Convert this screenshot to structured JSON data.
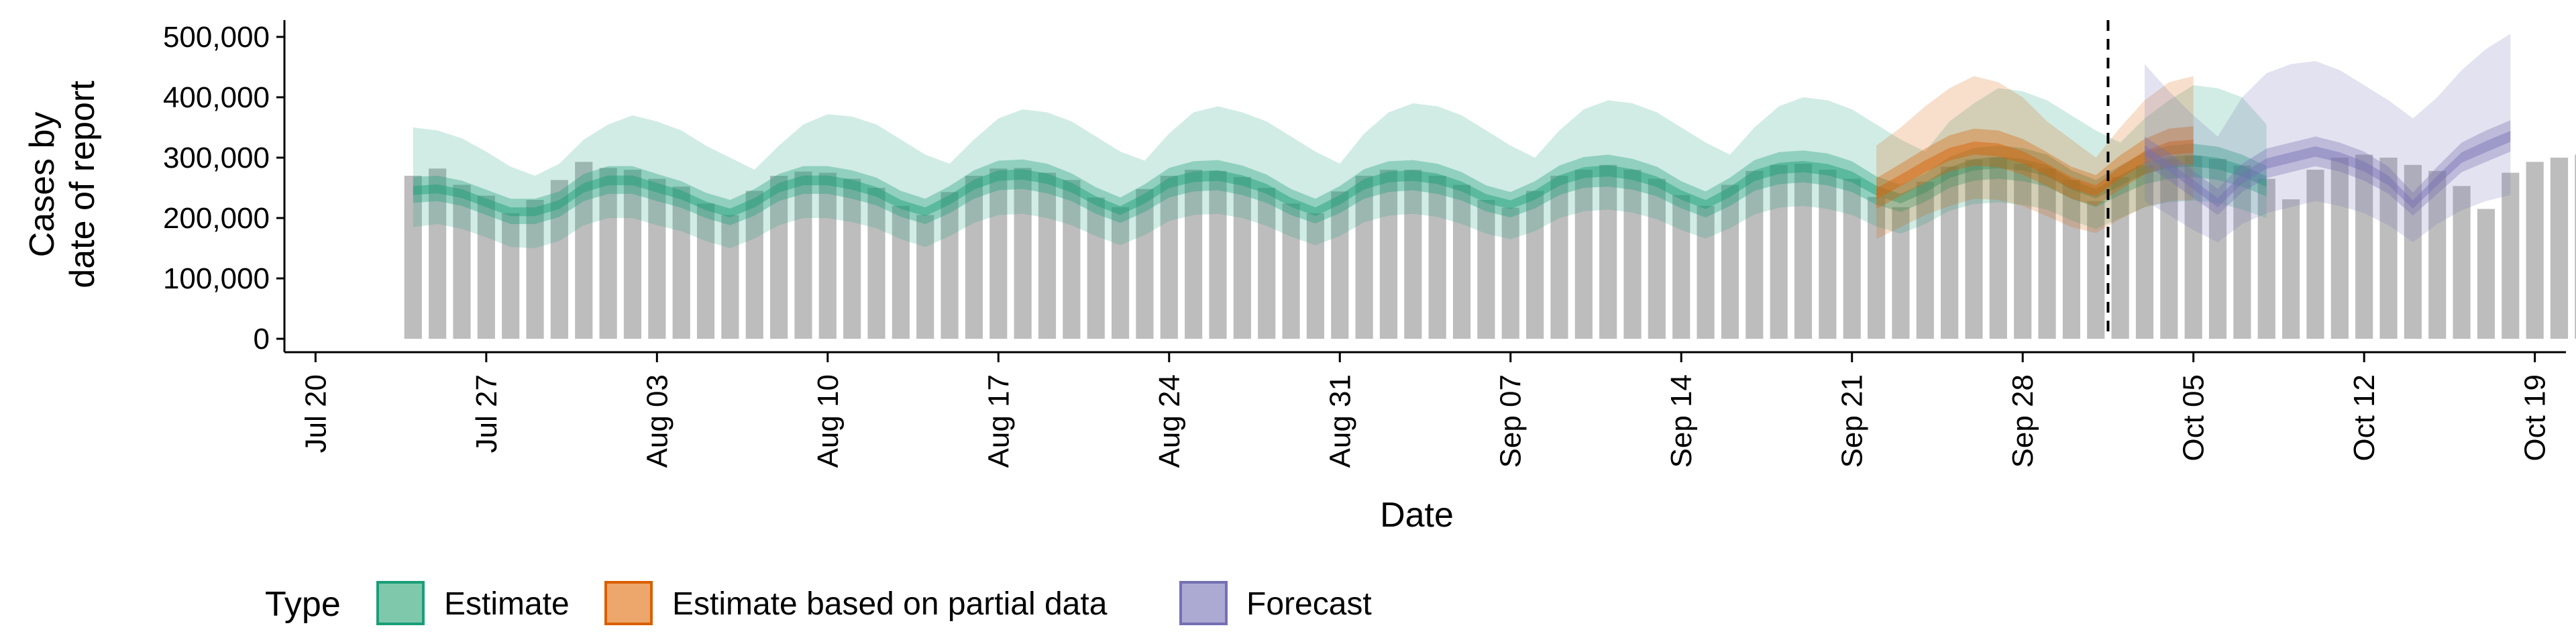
{
  "chart_data": {
    "type": "area",
    "ylabel_lines": [
      "Cases by",
      "date of report"
    ],
    "xlabel": "Date",
    "y_ticks": [
      0,
      100000,
      200000,
      300000,
      400000,
      500000
    ],
    "y_tick_labels": [
      "0",
      "100,000",
      "200,000",
      "300,000",
      "400,000",
      "500,000"
    ],
    "ylim": [
      0,
      520000
    ],
    "x_start": "2020-07-19",
    "x_end": "2020-10-20",
    "x_ticks": [
      {
        "date": "2020-07-20",
        "label": "Jul 20"
      },
      {
        "date": "2020-07-27",
        "label": "Jul 27"
      },
      {
        "date": "2020-08-03",
        "label": "Aug 03"
      },
      {
        "date": "2020-08-10",
        "label": "Aug 10"
      },
      {
        "date": "2020-08-17",
        "label": "Aug 17"
      },
      {
        "date": "2020-08-24",
        "label": "Aug 24"
      },
      {
        "date": "2020-08-31",
        "label": "Aug 31"
      },
      {
        "date": "2020-09-07",
        "label": "Sep 07"
      },
      {
        "date": "2020-09-14",
        "label": "Sep 14"
      },
      {
        "date": "2020-09-21",
        "label": "Sep 21"
      },
      {
        "date": "2020-09-28",
        "label": "Sep 28"
      },
      {
        "date": "2020-10-05",
        "label": "Oct 05"
      },
      {
        "date": "2020-10-12",
        "label": "Oct 12"
      },
      {
        "date": "2020-10-19",
        "label": "Oct 19"
      }
    ],
    "forecast_line_date": "2020-10-02",
    "legend": {
      "title": "Type",
      "position": "bottom",
      "items": [
        {
          "name": "Estimate",
          "fill": "#7fc8ab",
          "stroke": "#1b9e77"
        },
        {
          "name": "Estimate based on partial data",
          "fill": "#eda66b",
          "stroke": "#d95f02"
        },
        {
          "name": "Forecast",
          "fill": "#aca9d3",
          "stroke": "#7570b3"
        }
      ]
    },
    "series_colors": {
      "bars": "#bdbdbd",
      "Estimate": "#1b9e77",
      "Estimate based on partial data": "#d95f02",
      "Forecast": "#7570b3"
    },
    "reported_cases": {
      "start_date": "2020-07-24",
      "values": [
        270000,
        282000,
        255000,
        237000,
        208000,
        230000,
        263000,
        293000,
        283000,
        280000,
        265000,
        252000,
        224000,
        205000,
        245000,
        270000,
        277000,
        275000,
        265000,
        250000,
        220000,
        205000,
        243000,
        270000,
        282000,
        283000,
        275000,
        263000,
        234000,
        218000,
        248000,
        270000,
        280000,
        278000,
        268000,
        250000,
        224000,
        208000,
        244000,
        270000,
        280000,
        280000,
        270000,
        255000,
        230000,
        217000,
        245000,
        270000,
        280000,
        288000,
        280000,
        265000,
        238000,
        220000,
        255000,
        278000,
        288000,
        290000,
        280000,
        265000,
        235000,
        218000,
        260000,
        285000,
        297000,
        300000,
        290000,
        282000,
        263000,
        228000,
        268000,
        287000,
        297000,
        303000,
        298000,
        287000,
        265000,
        231000,
        280000,
        300000,
        305000,
        300000,
        288000,
        278000,
        253000,
        215000,
        275000,
        293000,
        300000,
        305000
      ]
    },
    "estimate": {
      "start_date": "2020-07-24",
      "median": [
        245000,
        248000,
        240000,
        225000,
        210000,
        210000,
        222000,
        250000,
        262000,
        262000,
        250000,
        238000,
        220000,
        208000,
        225000,
        250000,
        262000,
        262000,
        255000,
        243000,
        222000,
        210000,
        230000,
        255000,
        270000,
        272000,
        265000,
        250000,
        228000,
        212000,
        232000,
        258000,
        268000,
        270000,
        262000,
        248000,
        226000,
        210000,
        230000,
        256000,
        268000,
        270000,
        265000,
        252000,
        232000,
        222000,
        238000,
        262000,
        275000,
        278000,
        272000,
        260000,
        238000,
        222000,
        243000,
        270000,
        282000,
        285000,
        280000,
        268000,
        245000,
        232000,
        250000,
        275000,
        288000,
        292000,
        288000,
        278000,
        255000,
        240000,
        262000,
        282000,
        292000,
        295000,
        290000,
        278000,
        260000
      ],
      "low50": [
        225000,
        228000,
        220000,
        205000,
        190000,
        190000,
        202000,
        228000,
        240000,
        240000,
        228000,
        217000,
        200000,
        188000,
        204000,
        228000,
        240000,
        240000,
        232000,
        221000,
        202000,
        190000,
        208000,
        232000,
        246000,
        248000,
        241000,
        228000,
        207000,
        192000,
        210000,
        234000,
        244000,
        246000,
        238000,
        225000,
        205000,
        191000,
        208000,
        232000,
        243000,
        246000,
        240000,
        229000,
        211000,
        201000,
        216000,
        238000,
        250000,
        252000,
        247000,
        236000,
        216000,
        201000,
        220000,
        245000,
        256000,
        259000,
        254000,
        243000,
        222000,
        210000,
        227000,
        250000,
        262000,
        265000,
        261000,
        252000,
        232000,
        218000,
        238000,
        256000,
        265000,
        268000,
        263000,
        252000,
        236000
      ],
      "high50": [
        268000,
        270000,
        262000,
        247000,
        232000,
        232000,
        244000,
        273000,
        286000,
        286000,
        273000,
        261000,
        242000,
        230000,
        248000,
        273000,
        286000,
        286000,
        279000,
        267000,
        245000,
        232000,
        253000,
        279000,
        295000,
        297000,
        290000,
        274000,
        251000,
        234000,
        256000,
        283000,
        294000,
        296000,
        287000,
        272000,
        248000,
        232000,
        253000,
        281000,
        294000,
        296000,
        290000,
        276000,
        254000,
        243000,
        261000,
        287000,
        301000,
        305000,
        298000,
        285000,
        261000,
        244000,
        267000,
        296000,
        309000,
        312000,
        307000,
        294000,
        269000,
        255000,
        274000,
        301000,
        316000,
        320000,
        316000,
        305000,
        279000,
        263000,
        287000,
        309000,
        320000,
        323000,
        318000,
        305000,
        286000
      ],
      "low90": [
        185000,
        190000,
        182000,
        168000,
        152000,
        150000,
        162000,
        188000,
        200000,
        200000,
        188000,
        178000,
        162000,
        150000,
        166000,
        188000,
        200000,
        200000,
        193000,
        183000,
        165000,
        152000,
        170000,
        192000,
        205000,
        207000,
        200000,
        188000,
        170000,
        155000,
        172000,
        195000,
        205000,
        207000,
        200000,
        187000,
        169000,
        155000,
        170000,
        193000,
        204000,
        207000,
        202000,
        190000,
        174000,
        165000,
        178000,
        200000,
        211000,
        214000,
        209000,
        198000,
        180000,
        166000,
        183000,
        206000,
        217000,
        220000,
        215000,
        205000,
        186000,
        174000,
        190000,
        212000,
        223000,
        226000,
        222000,
        214000,
        196000,
        182000,
        200000,
        218000,
        226000,
        229000,
        225000,
        214000,
        200000
      ],
      "high90": [
        350000,
        345000,
        332000,
        310000,
        285000,
        270000,
        290000,
        330000,
        355000,
        370000,
        360000,
        345000,
        320000,
        300000,
        280000,
        320000,
        355000,
        372000,
        368000,
        355000,
        330000,
        305000,
        290000,
        330000,
        365000,
        380000,
        375000,
        360000,
        335000,
        310000,
        295000,
        340000,
        375000,
        385000,
        375000,
        360000,
        335000,
        310000,
        290000,
        340000,
        375000,
        390000,
        385000,
        370000,
        345000,
        320000,
        300000,
        345000,
        380000,
        395000,
        390000,
        375000,
        350000,
        325000,
        305000,
        350000,
        385000,
        400000,
        395000,
        380000,
        355000,
        330000,
        310000,
        360000,
        390000,
        415000,
        410000,
        395000,
        370000,
        345000,
        325000,
        365000,
        395000,
        420000,
        415000,
        400000,
        355000
      ]
    },
    "partial": {
      "start_date": "2020-09-22",
      "median": [
        240000,
        262000,
        285000,
        305000,
        315000,
        312000,
        300000,
        280000,
        258000,
        245000,
        275000,
        300000,
        315000,
        318000
      ],
      "low50": [
        215000,
        237000,
        258000,
        277000,
        287000,
        284000,
        272000,
        253000,
        232000,
        220000,
        248000,
        272000,
        286000,
        289000
      ],
      "high50": [
        266000,
        290000,
        315000,
        337000,
        348000,
        345000,
        331000,
        309000,
        285000,
        271000,
        304000,
        331000,
        348000,
        352000
      ],
      "low90": [
        165000,
        185000,
        205000,
        220000,
        232000,
        230000,
        220000,
        203000,
        185000,
        175000,
        198000,
        218000,
        228000,
        230000
      ],
      "high90": [
        320000,
        350000,
        385000,
        415000,
        435000,
        425000,
        400000,
        360000,
        330000,
        300000,
        350000,
        395000,
        425000,
        435000
      ]
    },
    "forecast": {
      "start_date": "2020-10-03",
      "median": [
        312000,
        285000,
        255000,
        225000,
        265000,
        290000,
        300000,
        310000,
        300000,
        285000,
        262000,
        222000,
        262000,
        300000,
        318000,
        335000
      ],
      "low50": [
        290000,
        262000,
        233000,
        205000,
        243000,
        266000,
        276000,
        286000,
        277000,
        262000,
        240000,
        204000,
        240000,
        276000,
        293000,
        310000
      ],
      "high50": [
        335000,
        308000,
        278000,
        248000,
        290000,
        315000,
        325000,
        335000,
        325000,
        310000,
        285000,
        242000,
        285000,
        325000,
        345000,
        362000
      ],
      "low90": [
        228000,
        205000,
        180000,
        160000,
        190000,
        208000,
        218000,
        228000,
        220000,
        208000,
        188000,
        160000,
        190000,
        213000,
        228000,
        238000
      ],
      "high90": [
        455000,
        410000,
        370000,
        335000,
        400000,
        440000,
        455000,
        460000,
        445000,
        420000,
        395000,
        365000,
        400000,
        445000,
        480000,
        505000
      ]
    }
  }
}
